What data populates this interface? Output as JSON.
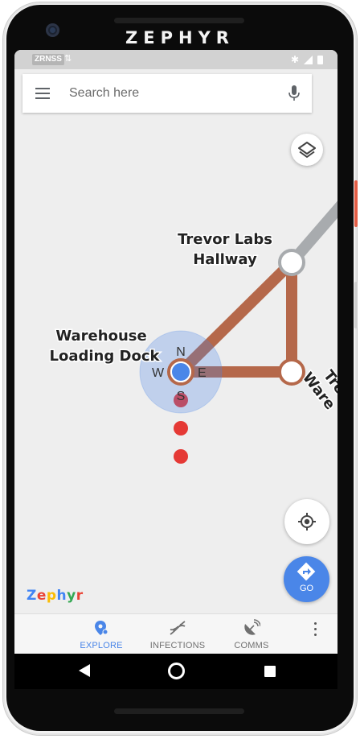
{
  "device": {
    "brand": "ZEPHYR"
  },
  "status_bar": {
    "carrier": "ZRNSS",
    "network_icon": "data-transfer-icon",
    "icons": [
      "bluetooth-icon",
      "signal-icon",
      "battery-icon"
    ]
  },
  "search": {
    "placeholder": "Search here",
    "menu_icon": "hamburger-menu-icon",
    "mic_icon": "microphone-icon"
  },
  "map": {
    "locations": [
      {
        "name_line1": "Trevor Labs",
        "name_line2": "Hallway"
      },
      {
        "name_line1": "Warehouse",
        "name_line2": "Loading Dock"
      },
      {
        "name_line1": "Tre",
        "name_line2": "Ware"
      }
    ],
    "compass": {
      "north": "N",
      "south": "S",
      "east": "E",
      "west": "W"
    },
    "route_color": "#b5684a",
    "inactive_route_color": "#a8abae",
    "location_dot_color": "#4a86e8",
    "infection_dot_color": "#e53935",
    "logo": "Zephyr"
  },
  "buttons": {
    "layers_icon": "layers-icon",
    "my_location_icon": "my-location-icon",
    "go_label": "GO",
    "go_icon": "directions-icon"
  },
  "bottom_nav": {
    "items": [
      {
        "label": "EXPLORE",
        "icon": "map-pin-icon",
        "active": true
      },
      {
        "label": "INFECTIONS",
        "icon": "dna-icon",
        "active": false
      },
      {
        "label": "COMMS",
        "icon": "satellite-dish-icon",
        "active": false
      }
    ],
    "more_icon": "more-vert-icon"
  },
  "accent_color": "#4a86e8"
}
